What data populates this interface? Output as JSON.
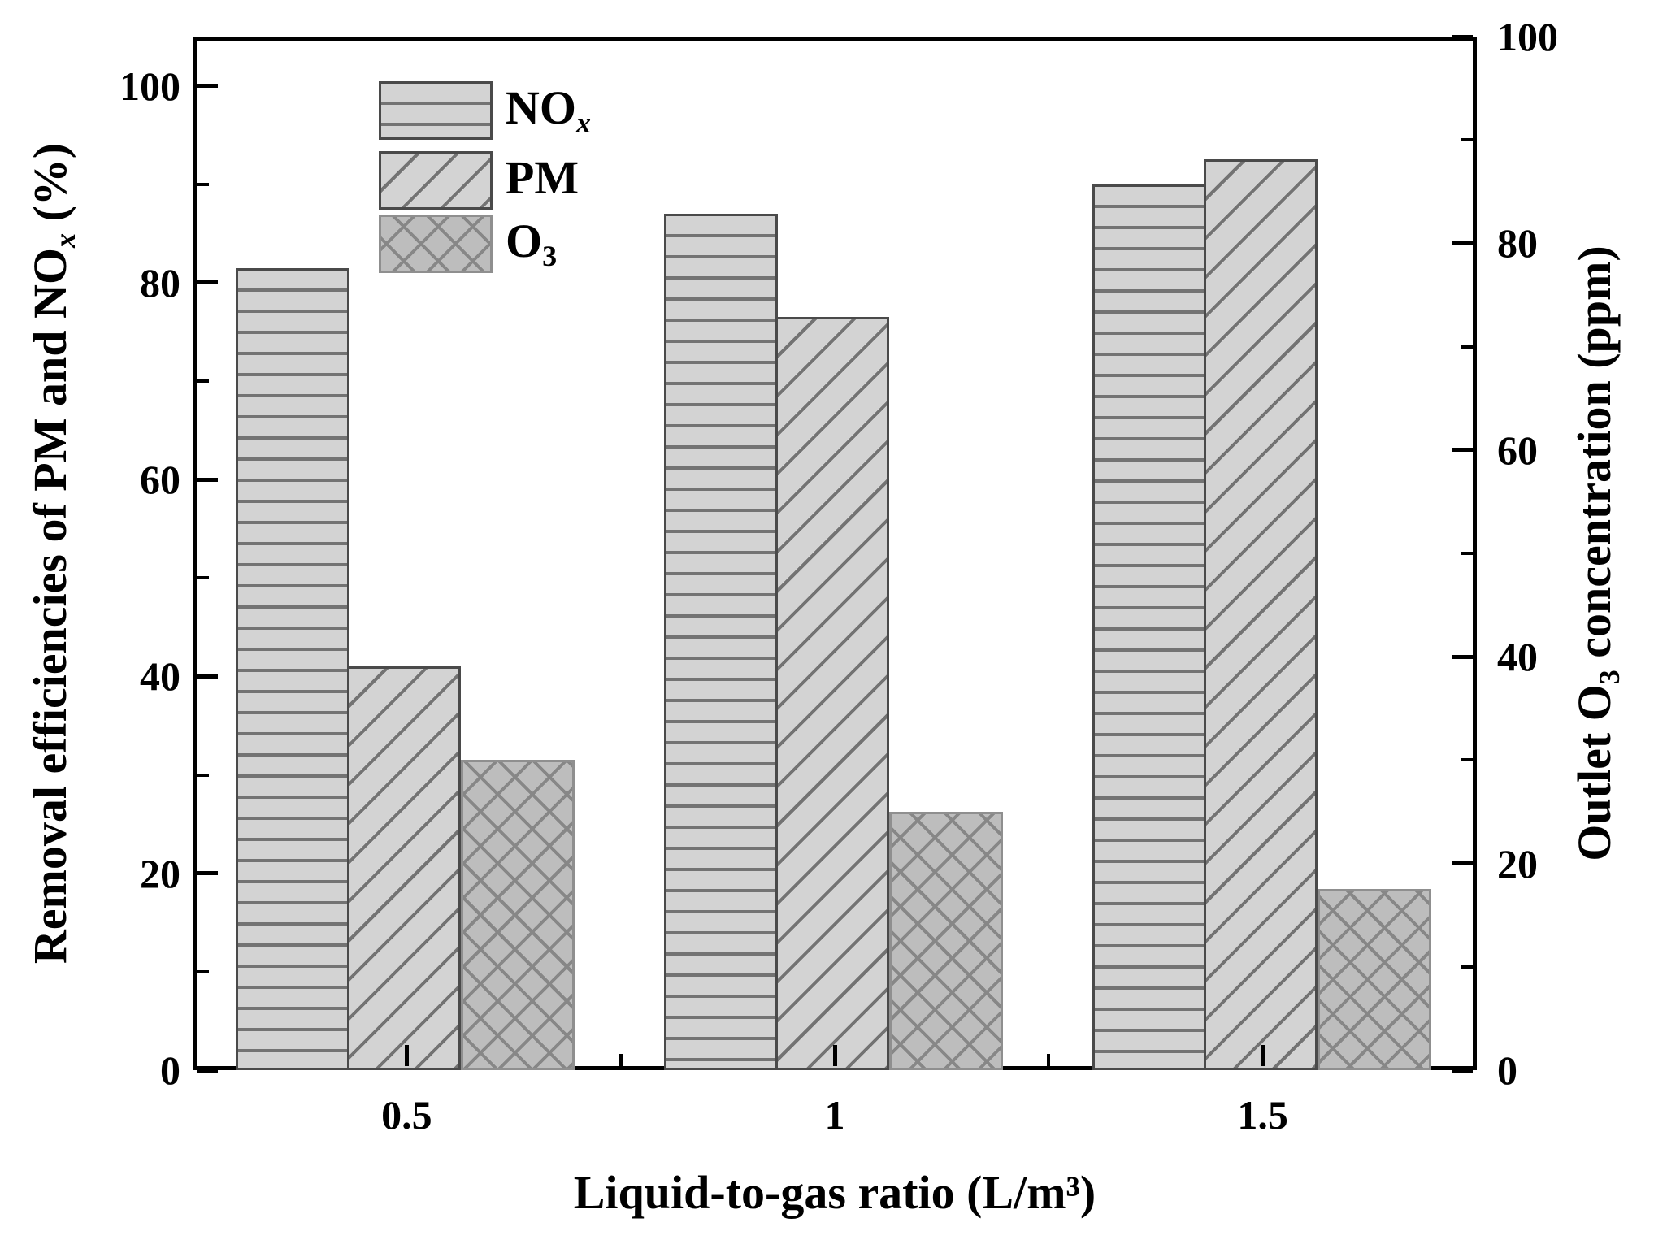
{
  "chart_data": {
    "type": "bar",
    "title": "",
    "categories": [
      "0.5",
      "1",
      "1.5"
    ],
    "series": [
      {
        "name": "NOx",
        "axis": "left",
        "pattern": "horizontal-lines",
        "values": [
          81.5,
          87,
          90
        ]
      },
      {
        "name": "PM",
        "axis": "left",
        "pattern": "diagonal-lines",
        "values": [
          41,
          76.5,
          92.5
        ]
      },
      {
        "name": "O3",
        "axis": "right",
        "pattern": "crosshatch",
        "values": [
          30,
          25,
          17.5
        ]
      }
    ],
    "legend": {
      "position": "top-left-inside",
      "entries": [
        {
          "series": "NOx",
          "segments": [
            {
              "t": "NO"
            },
            {
              "t": "x",
              "sub": true,
              "italic": true
            }
          ]
        },
        {
          "series": "PM",
          "segments": [
            {
              "t": "PM"
            }
          ]
        },
        {
          "series": "O3",
          "segments": [
            {
              "t": "O"
            },
            {
              "t": "3",
              "sub": true
            }
          ]
        }
      ]
    },
    "left_axis": {
      "label_segments": [
        {
          "t": "Removal efficiencies of PM and NO"
        },
        {
          "t": "x",
          "sub": true,
          "italic": true
        },
        {
          "t": " (%)"
        }
      ],
      "range": [
        0,
        105
      ],
      "major_ticks": [
        0,
        20,
        40,
        60,
        80,
        100
      ],
      "minor_ticks": [
        10,
        30,
        50,
        70,
        90
      ]
    },
    "right_axis": {
      "label_segments": [
        {
          "t": "Outlet O"
        },
        {
          "t": "3",
          "sub": true
        },
        {
          "t": " concentration (ppm)"
        }
      ],
      "range": [
        0,
        100
      ],
      "major_ticks": [
        0,
        20,
        40,
        60,
        80,
        100
      ],
      "minor_ticks": [
        10,
        30,
        50,
        70,
        90
      ]
    },
    "x_axis": {
      "label": "Liquid-to-gas ratio (L/m³)",
      "tick_labels": [
        "0.5",
        "1",
        "1.5"
      ]
    },
    "grid": "off",
    "colors": {
      "bar_fill_light": "#d3d3d3",
      "bar_fill_cross": "#bdbdbd",
      "hatch_line": "#737373",
      "cross_line": "#878787",
      "bar_edge_dark": "#4a4a4a",
      "bar_edge_gray": "#8f8f8f",
      "axis": "#000000",
      "background": "#ffffff"
    }
  }
}
